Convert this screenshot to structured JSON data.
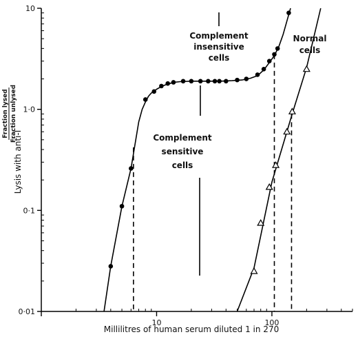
{
  "chart_data": {
    "type": "scatter",
    "title": "",
    "xlabel": "Millilitres of human serum diluted 1 in 270",
    "ylabel": "Lysis with anti-I",
    "ylabel_fraction_top": "Fraction lysed",
    "ylabel_fraction_bottom": "Fraction unlysed",
    "xscale": "log",
    "yscale": "log",
    "xlim": [
      1,
      500
    ],
    "ylim": [
      0.01,
      10
    ],
    "xticks": [
      {
        "value": 10,
        "label": "10"
      },
      {
        "value": 100,
        "label": "100"
      }
    ],
    "yticks": [
      {
        "value": 0.01,
        "label": "0·01"
      },
      {
        "value": 0.1,
        "label": "0·1"
      },
      {
        "value": 1,
        "label": "1·0"
      },
      {
        "value": 10,
        "label": "10"
      }
    ],
    "grid": false,
    "legend": "none",
    "series": [
      {
        "marker": "filled-circle",
        "x": [
          4.0,
          5.0,
          6.0,
          8.0,
          9.5,
          11.0,
          12.5,
          14.0,
          17.0,
          20.0,
          24.0,
          28.0,
          32.0,
          35.0,
          40.0,
          50.0,
          60.0,
          75.0,
          85.0,
          95.0,
          105.0,
          112.0,
          140.0
        ],
        "y": [
          0.028,
          0.11,
          0.26,
          1.25,
          1.5,
          1.7,
          1.8,
          1.85,
          1.9,
          1.9,
          1.9,
          1.9,
          1.9,
          1.9,
          1.9,
          1.95,
          2.0,
          2.2,
          2.5,
          3.0,
          3.5,
          4.0,
          9.0
        ],
        "curve_x": [
          3.5,
          4.0,
          5.0,
          6.0,
          7.0,
          7.5,
          8.0,
          8.5,
          9.0,
          10.0,
          11.0,
          12.0,
          13.0,
          14.0,
          16.0,
          20.0,
          25.0,
          30.0,
          36.0,
          45.0,
          55.0,
          65.0,
          75.0,
          85.0,
          95.0,
          105.0,
          115.0,
          125.0,
          135.0,
          145.0
        ],
        "curve_y": [
          0.01,
          0.028,
          0.11,
          0.26,
          0.75,
          1.0,
          1.18,
          1.35,
          1.45,
          1.58,
          1.68,
          1.75,
          1.8,
          1.85,
          1.88,
          1.9,
          1.9,
          1.9,
          1.9,
          1.92,
          1.95,
          2.03,
          2.15,
          2.45,
          2.9,
          3.4,
          4.2,
          5.5,
          7.5,
          10.0
        ],
        "dashed_drops": [
          {
            "x": 6.3,
            "y": 0.42
          },
          {
            "x": 105.0,
            "y": 3.5
          }
        ]
      },
      {
        "marker": "open-triangle",
        "x": [
          70.0,
          80.0,
          95.0,
          108.0,
          135.0,
          150.0,
          200.0
        ],
        "y": [
          0.025,
          0.075,
          0.17,
          0.28,
          0.6,
          0.95,
          2.5
        ],
        "curve_x": [
          50.0,
          70.0,
          100.0,
          150.0,
          200.0,
          265.0
        ],
        "curve_y": [
          0.01,
          0.027,
          0.19,
          0.9,
          2.6,
          10.0
        ],
        "dashed_drops": [
          {
            "x": 148.0,
            "y": 0.9
          }
        ]
      }
    ],
    "annotations": [
      {
        "lines": [
          "Complement",
          "insensitive",
          "cells"
        ]
      },
      {
        "lines": [
          "Complement",
          "sensitive",
          "cells"
        ]
      },
      {
        "lines": [
          "Normal",
          "cells"
        ]
      }
    ]
  }
}
